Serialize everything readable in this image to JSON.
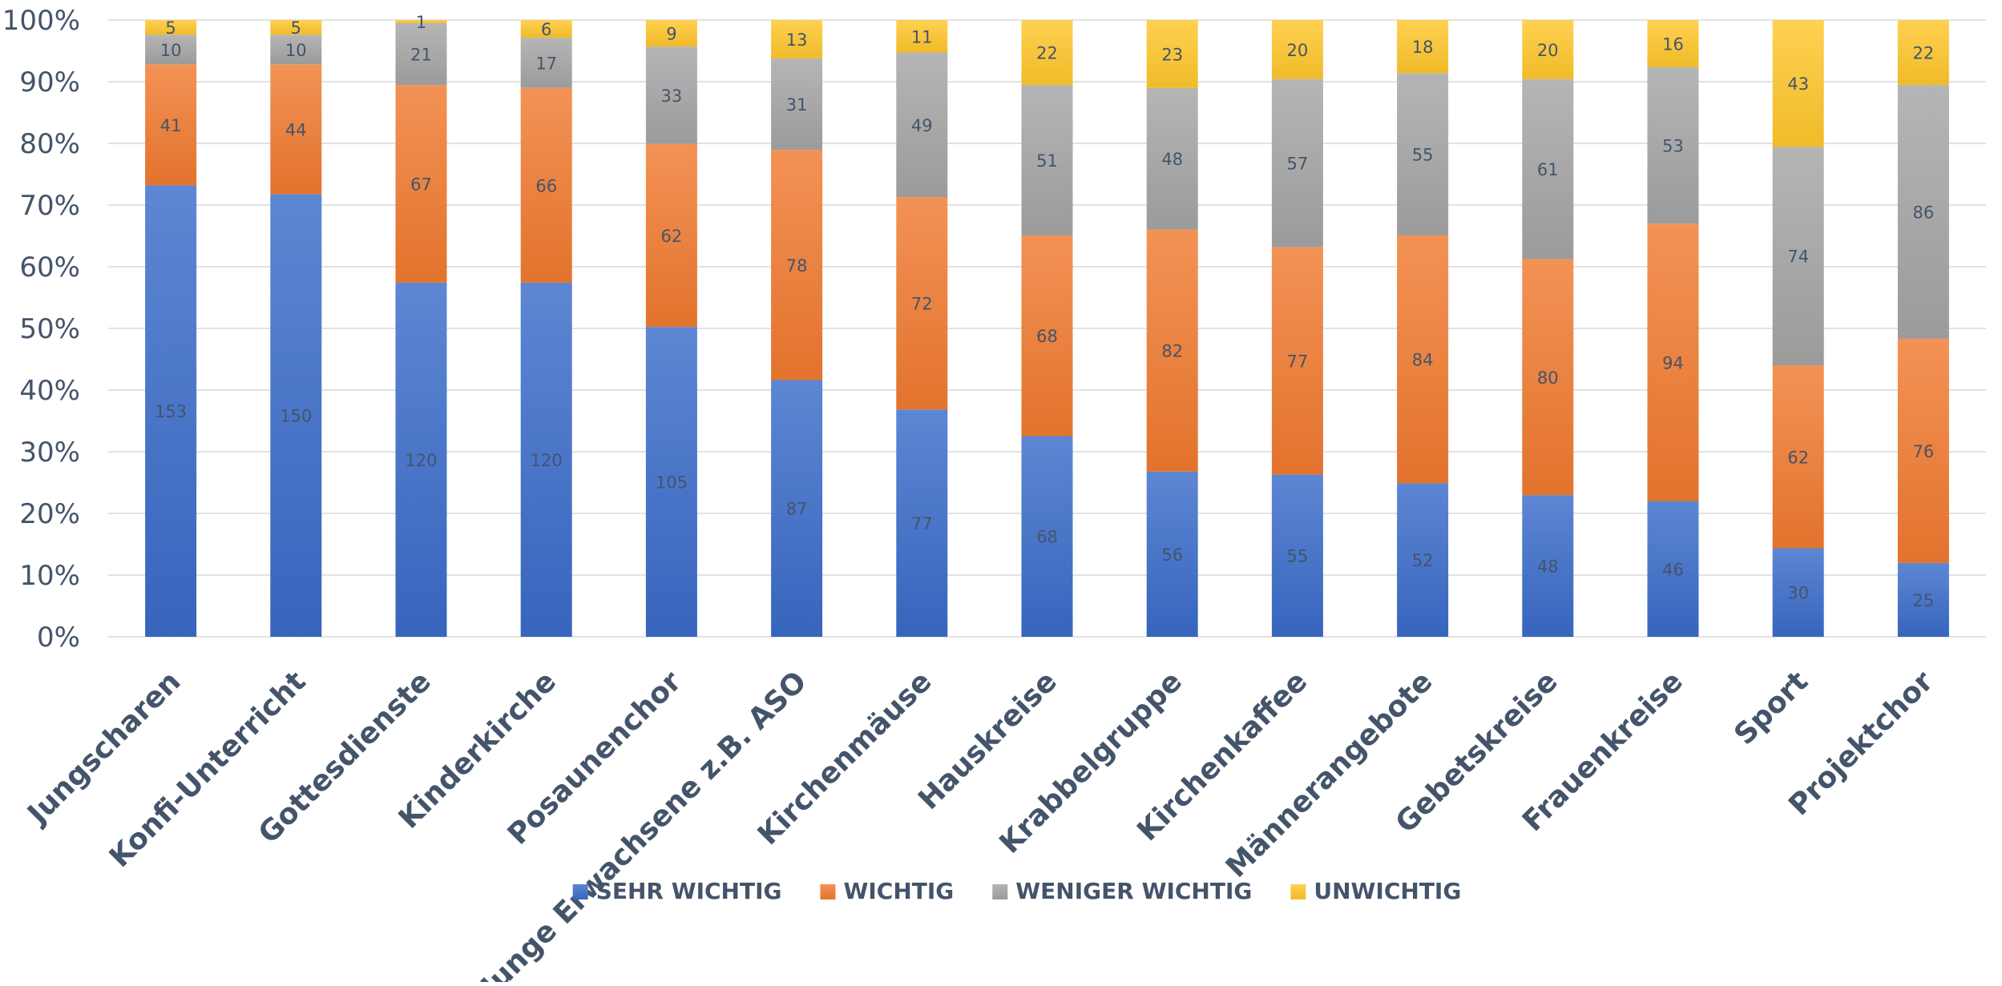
{
  "chart_data": {
    "type": "bar",
    "stacked": "percent",
    "categories": [
      "Jungscharen",
      "Konfi-Unterricht",
      "Gottesdienste",
      "Kinderkirche",
      "Posaunenchor",
      "Junge Erwachsene z.B. ASO",
      "Kirchenmäuse",
      "Hauskreise",
      "Krabbelgruppe",
      "Kirchenkaffee",
      "Männerangebote",
      "Gebetskreise",
      "Frauenkreise",
      "Sport",
      "Projektchor"
    ],
    "series": [
      {
        "name": "SEHR WICHTIG",
        "color": "#3a6bc9",
        "values": [
          153,
          150,
          120,
          120,
          105,
          87,
          77,
          68,
          56,
          55,
          52,
          48,
          46,
          30,
          25
        ]
      },
      {
        "name": "WICHTIG",
        "color": "#f07a30",
        "values": [
          41,
          44,
          67,
          66,
          62,
          78,
          72,
          68,
          82,
          77,
          84,
          80,
          94,
          62,
          76
        ]
      },
      {
        "name": "WENIGER WICHTIG",
        "color": "#a5a5a5",
        "values": [
          10,
          10,
          21,
          17,
          33,
          31,
          49,
          51,
          48,
          57,
          55,
          61,
          53,
          74,
          86
        ]
      },
      {
        "name": "UNWICHTIG",
        "color": "#ffc72c",
        "values": [
          5,
          5,
          1,
          6,
          9,
          13,
          11,
          22,
          23,
          20,
          18,
          20,
          16,
          43,
          22
        ]
      }
    ],
    "y_ticks": [
      "0%",
      "10%",
      "20%",
      "30%",
      "40%",
      "50%",
      "60%",
      "70%",
      "80%",
      "90%",
      "100%"
    ],
    "ylim": [
      0,
      100
    ],
    "grid": true,
    "legend": "bottom",
    "title": "",
    "xlabel": "",
    "ylabel": ""
  }
}
